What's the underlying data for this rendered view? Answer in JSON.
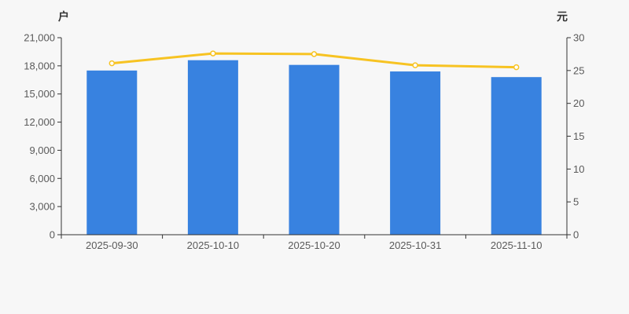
{
  "colors": {
    "background": "#f7f7f7",
    "axis_line": "#333333",
    "tick_text": "#5a5a5a",
    "bar": "#3882e0",
    "line": "#f7c322",
    "marker_fill": "#ffffff"
  },
  "chart_data": {
    "type": "bar",
    "subtype": "bar+line dual-axis combo",
    "title": "",
    "categories": [
      "2025-09-30",
      "2025-10-10",
      "2025-10-20",
      "2025-10-31",
      "2025-11-10"
    ],
    "series": [
      {
        "name": "户",
        "type": "bar",
        "axis": "left",
        "color": "#3882e0",
        "values": [
          17500,
          18600,
          18100,
          17400,
          16800
        ]
      },
      {
        "name": "元",
        "type": "line",
        "axis": "right",
        "color": "#f7c322",
        "values": [
          26.1,
          27.6,
          27.5,
          25.8,
          25.5
        ]
      }
    ],
    "left_axis": {
      "label": "户",
      "min": 0,
      "max": 21000,
      "step": 3000,
      "tick_labels": [
        "0",
        "3,000",
        "6,000",
        "9,000",
        "12,000",
        "15,000",
        "18,000",
        "21,000"
      ]
    },
    "right_axis": {
      "label": "元",
      "min": 0,
      "max": 30,
      "step": 5,
      "tick_labels": [
        "0",
        "5",
        "10",
        "15",
        "20",
        "25",
        "30"
      ]
    },
    "grid": false,
    "legend": false
  }
}
